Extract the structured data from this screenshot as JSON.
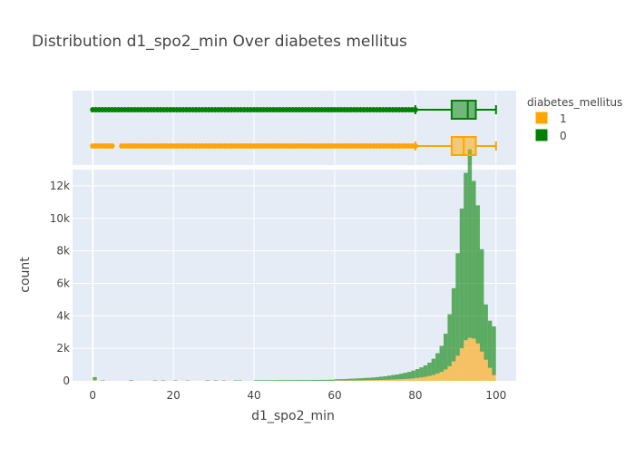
{
  "chart_data": {
    "type": "histogram",
    "title": "Distribution d1_spo2_min Over diabetes mellitus",
    "xlabel": "d1_spo2_min",
    "ylabel": "count",
    "xlim": [
      -5,
      105
    ],
    "ylim": [
      0,
      13000
    ],
    "x_ticks": [
      0,
      20,
      40,
      60,
      80,
      100
    ],
    "y_ticks": [
      {
        "value": 0,
        "label": "0"
      },
      {
        "value": 2000,
        "label": "2k"
      },
      {
        "value": 4000,
        "label": "4k"
      },
      {
        "value": 6000,
        "label": "6k"
      },
      {
        "value": 8000,
        "label": "8k"
      },
      {
        "value": 10000,
        "label": "10k"
      },
      {
        "value": 12000,
        "label": "12k"
      }
    ],
    "barmode": "stacked",
    "legend": {
      "title": "diabetes_mellitus",
      "placement": "top-right",
      "items": [
        {
          "name": "1",
          "color": "#FFA500"
        },
        {
          "name": "0",
          "color": "#008000"
        }
      ]
    },
    "series": [
      {
        "name": "1",
        "color": "#FFA500",
        "box": {
          "q1": 89,
          "median": 92,
          "q3": 95,
          "lower_fence": 80,
          "upper_fence": 100,
          "outliers_from": 0,
          "outliers_to": 80,
          "outlier_gap": [
            5,
            7
          ]
        },
        "bins": [
          {
            "x": 0,
            "count": 50
          },
          {
            "x": 60,
            "count": 20
          },
          {
            "x": 61,
            "count": 20
          },
          {
            "x": 62,
            "count": 20
          },
          {
            "x": 63,
            "count": 25
          },
          {
            "x": 64,
            "count": 25
          },
          {
            "x": 65,
            "count": 30
          },
          {
            "x": 66,
            "count": 30
          },
          {
            "x": 67,
            "count": 35
          },
          {
            "x": 68,
            "count": 40
          },
          {
            "x": 69,
            "count": 45
          },
          {
            "x": 70,
            "count": 50
          },
          {
            "x": 71,
            "count": 55
          },
          {
            "x": 72,
            "count": 60
          },
          {
            "x": 73,
            "count": 70
          },
          {
            "x": 74,
            "count": 80
          },
          {
            "x": 75,
            "count": 90
          },
          {
            "x": 76,
            "count": 100
          },
          {
            "x": 77,
            "count": 115
          },
          {
            "x": 78,
            "count": 130
          },
          {
            "x": 79,
            "count": 150
          },
          {
            "x": 80,
            "count": 180
          },
          {
            "x": 81,
            "count": 210
          },
          {
            "x": 82,
            "count": 250
          },
          {
            "x": 83,
            "count": 300
          },
          {
            "x": 84,
            "count": 360
          },
          {
            "x": 85,
            "count": 450
          },
          {
            "x": 86,
            "count": 550
          },
          {
            "x": 87,
            "count": 700
          },
          {
            "x": 88,
            "count": 900
          },
          {
            "x": 89,
            "count": 1200
          },
          {
            "x": 90,
            "count": 1550
          },
          {
            "x": 91,
            "count": 2000
          },
          {
            "x": 92,
            "count": 2500
          },
          {
            "x": 93,
            "count": 2650
          },
          {
            "x": 94,
            "count": 2600
          },
          {
            "x": 95,
            "count": 2300
          },
          {
            "x": 96,
            "count": 1800
          },
          {
            "x": 97,
            "count": 1300
          },
          {
            "x": 98,
            "count": 800
          },
          {
            "x": 99,
            "count": 350
          }
        ]
      },
      {
        "name": "0",
        "color": "#008000",
        "box": {
          "q1": 89,
          "median": 93,
          "q3": 95,
          "lower_fence": 80,
          "upper_fence": 100,
          "outliers_from": 0,
          "outliers_to": 80
        },
        "bins": [
          {
            "x": 0,
            "count": 180
          },
          {
            "x": 2,
            "count": 30
          },
          {
            "x": 9,
            "count": 40
          },
          {
            "x": 15,
            "count": 30
          },
          {
            "x": 17,
            "count": 30
          },
          {
            "x": 20,
            "count": 30
          },
          {
            "x": 23,
            "count": 25
          },
          {
            "x": 28,
            "count": 30
          },
          {
            "x": 30,
            "count": 30
          },
          {
            "x": 32,
            "count": 25
          },
          {
            "x": 35,
            "count": 30
          },
          {
            "x": 36,
            "count": 30
          },
          {
            "x": 40,
            "count": 40
          },
          {
            "x": 41,
            "count": 40
          },
          {
            "x": 42,
            "count": 40
          },
          {
            "x": 43,
            "count": 40
          },
          {
            "x": 44,
            "count": 40
          },
          {
            "x": 45,
            "count": 45
          },
          {
            "x": 46,
            "count": 45
          },
          {
            "x": 47,
            "count": 45
          },
          {
            "x": 48,
            "count": 45
          },
          {
            "x": 49,
            "count": 45
          },
          {
            "x": 50,
            "count": 50
          },
          {
            "x": 51,
            "count": 50
          },
          {
            "x": 52,
            "count": 50
          },
          {
            "x": 53,
            "count": 50
          },
          {
            "x": 54,
            "count": 55
          },
          {
            "x": 55,
            "count": 55
          },
          {
            "x": 56,
            "count": 60
          },
          {
            "x": 57,
            "count": 60
          },
          {
            "x": 58,
            "count": 65
          },
          {
            "x": 59,
            "count": 70
          },
          {
            "x": 60,
            "count": 80
          },
          {
            "x": 61,
            "count": 85
          },
          {
            "x": 62,
            "count": 90
          },
          {
            "x": 63,
            "count": 100
          },
          {
            "x": 64,
            "count": 110
          },
          {
            "x": 65,
            "count": 120
          },
          {
            "x": 66,
            "count": 130
          },
          {
            "x": 67,
            "count": 140
          },
          {
            "x": 68,
            "count": 150
          },
          {
            "x": 69,
            "count": 160
          },
          {
            "x": 70,
            "count": 180
          },
          {
            "x": 71,
            "count": 200
          },
          {
            "x": 72,
            "count": 220
          },
          {
            "x": 73,
            "count": 250
          },
          {
            "x": 74,
            "count": 280
          },
          {
            "x": 75,
            "count": 300
          },
          {
            "x": 76,
            "count": 340
          },
          {
            "x": 77,
            "count": 380
          },
          {
            "x": 78,
            "count": 420
          },
          {
            "x": 79,
            "count": 480
          },
          {
            "x": 80,
            "count": 540
          },
          {
            "x": 81,
            "count": 620
          },
          {
            "x": 82,
            "count": 700
          },
          {
            "x": 83,
            "count": 820
          },
          {
            "x": 84,
            "count": 1000
          },
          {
            "x": 85,
            "count": 1250
          },
          {
            "x": 86,
            "count": 1600
          },
          {
            "x": 87,
            "count": 2200
          },
          {
            "x": 88,
            "count": 3200
          },
          {
            "x": 89,
            "count": 4500
          },
          {
            "x": 90,
            "count": 6300
          },
          {
            "x": 91,
            "count": 8600
          },
          {
            "x": 92,
            "count": 10300
          },
          {
            "x": 93,
            "count": 11600
          },
          {
            "x": 94,
            "count": 9700
          },
          {
            "x": 95,
            "count": 8500
          },
          {
            "x": 96,
            "count": 6300
          },
          {
            "x": 97,
            "count": 3400
          },
          {
            "x": 98,
            "count": 2900
          },
          {
            "x": 99,
            "count": 3000
          }
        ]
      }
    ]
  }
}
